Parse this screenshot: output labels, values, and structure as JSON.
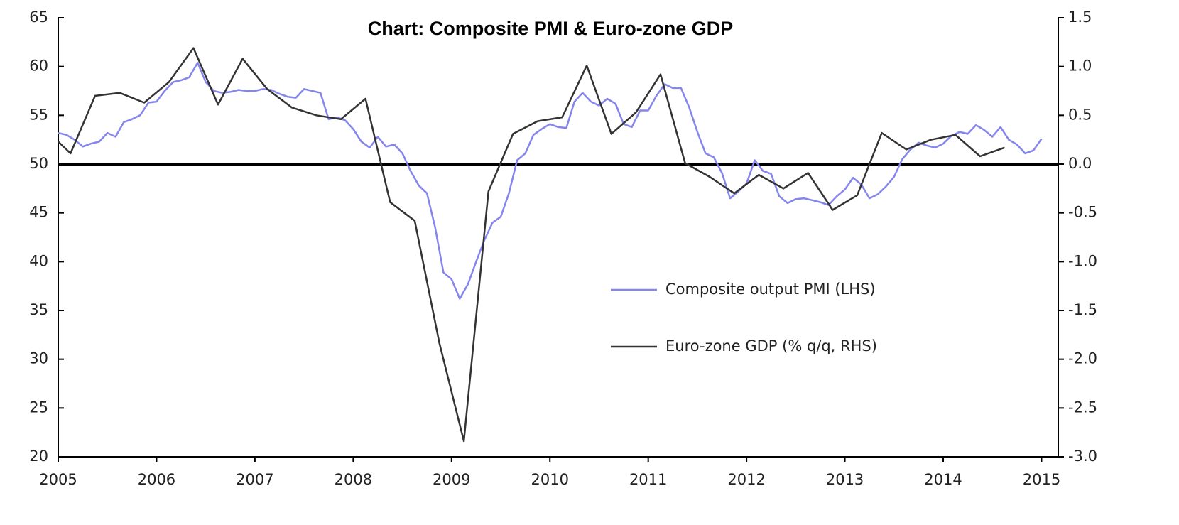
{
  "chart_data": {
    "type": "line",
    "title": "Chart: Composite PMI & Euro-zone GDP",
    "xlim": [
      2005,
      2015.17
    ],
    "xticks": [
      2005,
      2006,
      2007,
      2008,
      2009,
      2010,
      2011,
      2012,
      2013,
      2014,
      2015
    ],
    "ylim": [
      20,
      65
    ],
    "yticks": [
      20,
      25,
      30,
      35,
      40,
      45,
      50,
      55,
      60,
      65
    ],
    "y2lim": [
      -3,
      1.5
    ],
    "y2ticks": [
      {
        "value": -3,
        "label": "-3.0"
      },
      -2.5,
      {
        "value": -2,
        "label": "-2.0"
      },
      -1.5,
      {
        "value": -1,
        "label": "-1.0"
      },
      -0.5,
      {
        "value": 0,
        "label": "0.0"
      },
      0.5,
      {
        "value": 1,
        "label": "1.0"
      },
      1.5
    ],
    "zero_line": 0,
    "series": [
      {
        "name": "Composite output PMI (LHS)",
        "color": "#8585ee",
        "x": [
          2005,
          2005.083,
          2005.167,
          2005.25,
          2005.333,
          2005.417,
          2005.5,
          2005.583,
          2005.667,
          2005.75,
          2005.833,
          2005.917,
          2006,
          2006.083,
          2006.167,
          2006.25,
          2006.333,
          2006.417,
          2006.5,
          2006.583,
          2006.667,
          2006.75,
          2006.833,
          2006.917,
          2007,
          2007.083,
          2007.167,
          2007.25,
          2007.333,
          2007.417,
          2007.5,
          2007.583,
          2007.667,
          2007.75,
          2007.833,
          2007.917,
          2008,
          2008.083,
          2008.167,
          2008.25,
          2008.333,
          2008.417,
          2008.5,
          2008.583,
          2008.667,
          2008.75,
          2008.833,
          2008.917,
          2009,
          2009.083,
          2009.167,
          2009.25,
          2009.333,
          2009.417,
          2009.5,
          2009.583,
          2009.667,
          2009.75,
          2009.833,
          2009.917,
          2010,
          2010.083,
          2010.167,
          2010.25,
          2010.333,
          2010.417,
          2010.5,
          2010.583,
          2010.667,
          2010.75,
          2010.833,
          2010.917,
          2011,
          2011.083,
          2011.167,
          2011.25,
          2011.333,
          2011.417,
          2011.5,
          2011.583,
          2011.667,
          2011.75,
          2011.833,
          2011.917,
          2012,
          2012.083,
          2012.167,
          2012.25,
          2012.333,
          2012.417,
          2012.5,
          2012.583,
          2012.667,
          2012.75,
          2012.833,
          2012.917,
          2013,
          2013.083,
          2013.167,
          2013.25,
          2013.333,
          2013.417,
          2013.5,
          2013.583,
          2013.667,
          2013.75,
          2013.833,
          2013.917,
          2014,
          2014.083,
          2014.167,
          2014.25,
          2014.333,
          2014.417,
          2014.5,
          2014.583,
          2014.667,
          2014.75,
          2014.833,
          2014.917,
          2015
        ],
        "values": [
          53.2,
          53.0,
          52.5,
          51.8,
          52.1,
          52.3,
          53.2,
          52.8,
          54.3,
          54.6,
          55.0,
          56.3,
          56.4,
          57.5,
          58.4,
          58.6,
          58.9,
          60.4,
          58.4,
          57.5,
          57.3,
          57.4,
          57.6,
          57.5,
          57.5,
          57.7,
          57.6,
          57.2,
          56.9,
          56.8,
          57.7,
          57.5,
          57.3,
          54.6,
          54.8,
          54.5,
          53.6,
          52.3,
          51.7,
          52.8,
          51.8,
          52.0,
          51.1,
          49.3,
          47.8,
          47.0,
          43.5,
          38.9,
          38.2,
          36.2,
          37.7,
          40.0,
          42.2,
          44.0,
          44.6,
          47.0,
          50.4,
          51.1,
          53.0,
          53.6,
          54.1,
          53.8,
          53.7,
          56.4,
          57.3,
          56.4,
          56.0,
          56.7,
          56.2,
          54.1,
          53.8,
          55.5,
          55.5,
          57.0,
          58.2,
          57.8,
          57.8,
          55.8,
          53.3,
          51.1,
          50.7,
          49.1,
          46.5,
          47.2,
          48.0,
          50.4,
          49.3,
          49.0,
          46.7,
          46.0,
          46.4,
          46.5,
          46.3,
          46.1,
          45.8,
          46.7,
          47.4,
          48.6,
          47.9,
          46.5,
          46.9,
          47.7,
          48.7,
          50.5,
          51.5,
          52.2,
          51.9,
          51.7,
          52.1,
          52.9,
          53.3,
          53.1,
          54.0,
          53.5,
          52.8,
          53.8,
          52.5,
          52.0,
          51.1,
          51.4,
          52.6
        ]
      },
      {
        "name": "Euro-zone GDP (% q/q, RHS)",
        "color": "#333333",
        "axis": "y2",
        "x": [
          2005,
          2005.125,
          2005.375,
          2005.625,
          2005.875,
          2006.125,
          2006.375,
          2006.625,
          2006.875,
          2007.125,
          2007.375,
          2007.625,
          2007.875,
          2008.125,
          2008.375,
          2008.625,
          2008.875,
          2009.125,
          2009.375,
          2009.625,
          2009.875,
          2010.125,
          2010.375,
          2010.625,
          2010.875,
          2011.125,
          2011.375,
          2011.625,
          2011.875,
          2012.125,
          2012.375,
          2012.625,
          2012.875,
          2013.125,
          2013.375,
          2013.625,
          2013.875,
          2014.125,
          2014.375,
          2014.625
        ],
        "values": [
          0.23,
          0.11,
          0.7,
          0.73,
          0.63,
          0.84,
          1.19,
          0.61,
          1.08,
          0.77,
          0.58,
          0.5,
          0.46,
          0.67,
          -0.39,
          -0.58,
          -1.83,
          -2.84,
          -0.28,
          0.31,
          0.44,
          0.48,
          1.01,
          0.31,
          0.53,
          0.92,
          0.01,
          -0.13,
          -0.3,
          -0.11,
          -0.25,
          -0.09,
          -0.47,
          -0.32,
          0.32,
          0.15,
          0.25,
          0.3,
          0.08,
          0.17
        ]
      }
    ]
  }
}
